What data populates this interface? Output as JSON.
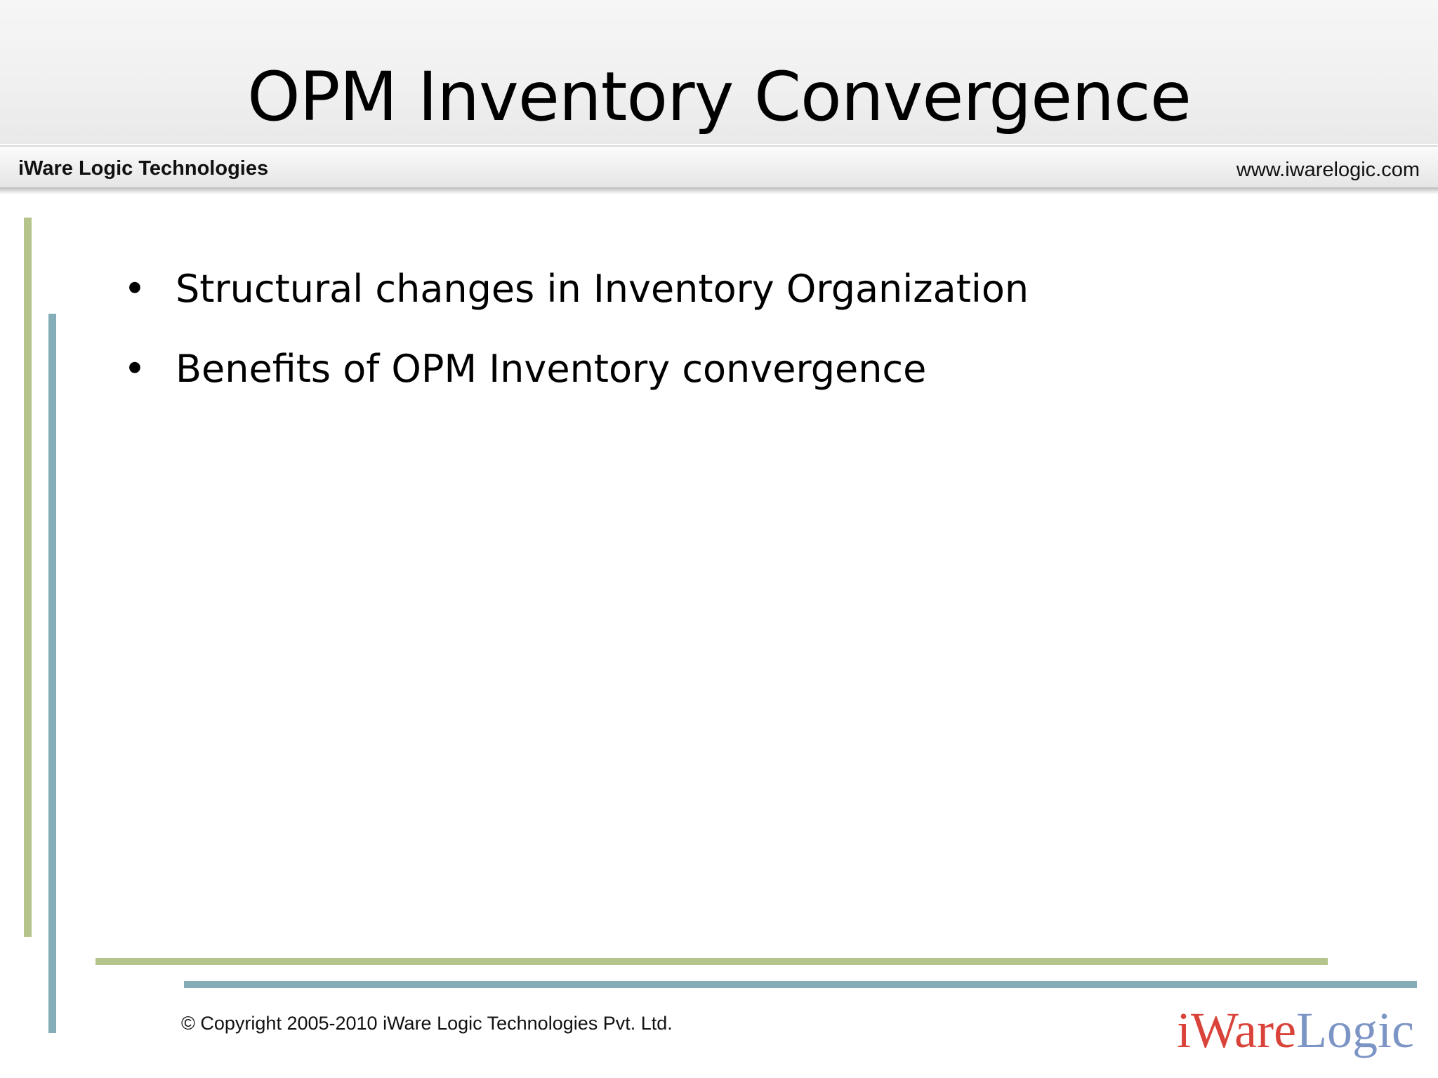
{
  "slide": {
    "title": "OPM Inventory Convergence",
    "header": {
      "company": "iWare Logic Technologies",
      "website": "www.iwarelogic.com"
    },
    "bullets": [
      "Structural changes in Inventory Organization",
      "Benefits of OPM Inventory convergence"
    ],
    "footer": {
      "copyright": "© Copyright 2005-2010 iWare Logic Technologies Pvt. Ltd.",
      "logo": {
        "part1": "iWare",
        "part2": "Logic"
      }
    }
  },
  "colors": {
    "accent_green": "#b5c48b",
    "accent_teal": "#84adb8",
    "logo_red": "#d9433a",
    "logo_blue": "#7d95c5"
  }
}
